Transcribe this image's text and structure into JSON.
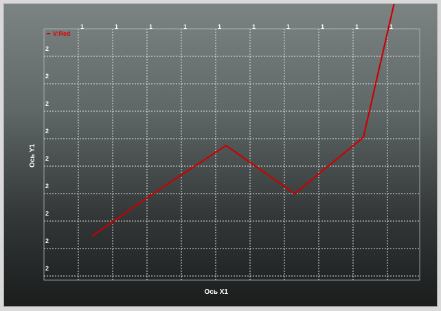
{
  "chart_data": {
    "type": "line",
    "xlabel": "Ось X1",
    "ylabel": "Ось Y1",
    "x_tick_labels": [
      "1",
      "1",
      "1",
      "1",
      "1",
      "1",
      "1",
      "1",
      "1",
      "1"
    ],
    "y_tick_labels": [
      "2",
      "2",
      "2",
      "2",
      "2",
      "2",
      "2",
      "2",
      "2"
    ],
    "grid": true,
    "legend": "top-left",
    "series": [
      {
        "name": "V:Red",
        "color": "#cc0000",
        "x": [
          0.4,
          2.3,
          4.3,
          6.3,
          8.3,
          9.2
        ],
        "y": [
          2.45,
          4.1,
          5.75,
          4.0,
          6.05,
          10.95
        ]
      }
    ]
  }
}
